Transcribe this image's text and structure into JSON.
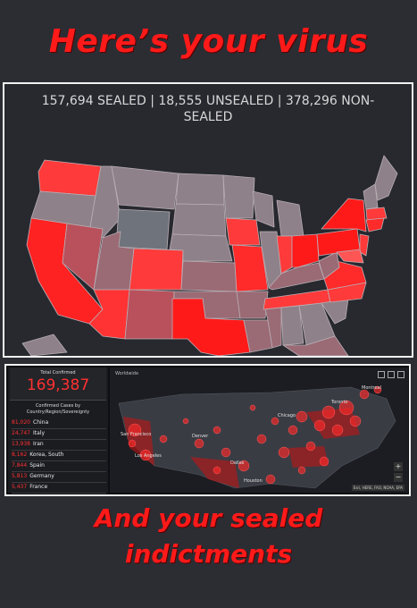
{
  "header": {
    "title": "Here’s your virus"
  },
  "map_panel": {
    "stats_text": "157,694 SEALED | 18,555 UNSEALED | 378,296 NON-SEALED"
  },
  "dashboard": {
    "total_label": "Total Confirmed",
    "total_value": "169,387",
    "list_title": "Confirmed Cases by Country/Region/Sovereignty",
    "rows": [
      {
        "value": "81,020",
        "country": "China"
      },
      {
        "value": "24,747",
        "country": "Italy"
      },
      {
        "value": "13,938",
        "country": "Iran"
      },
      {
        "value": "8,162",
        "country": "Korea, South"
      },
      {
        "value": "7,844",
        "country": "Spain"
      },
      {
        "value": "5,813",
        "country": "Germany"
      },
      {
        "value": "5,437",
        "country": "France"
      }
    ],
    "map_label": "Worldwide",
    "city_labels": [
      "Chicago",
      "Los Angeles",
      "Dallas",
      "Houston",
      "San Francisco",
      "Denver",
      "Toronto",
      "Montreal"
    ],
    "attribution": "Esri, HERE, FAO, NOAA, EPA"
  },
  "footer": {
    "line1": "And your sealed",
    "line2": "indictments"
  },
  "colors": {
    "headline_red": "#ff1a1a",
    "panel_bg": "#27292f",
    "state_gray": "#8a7d86",
    "state_red": "#ff2a2a"
  }
}
